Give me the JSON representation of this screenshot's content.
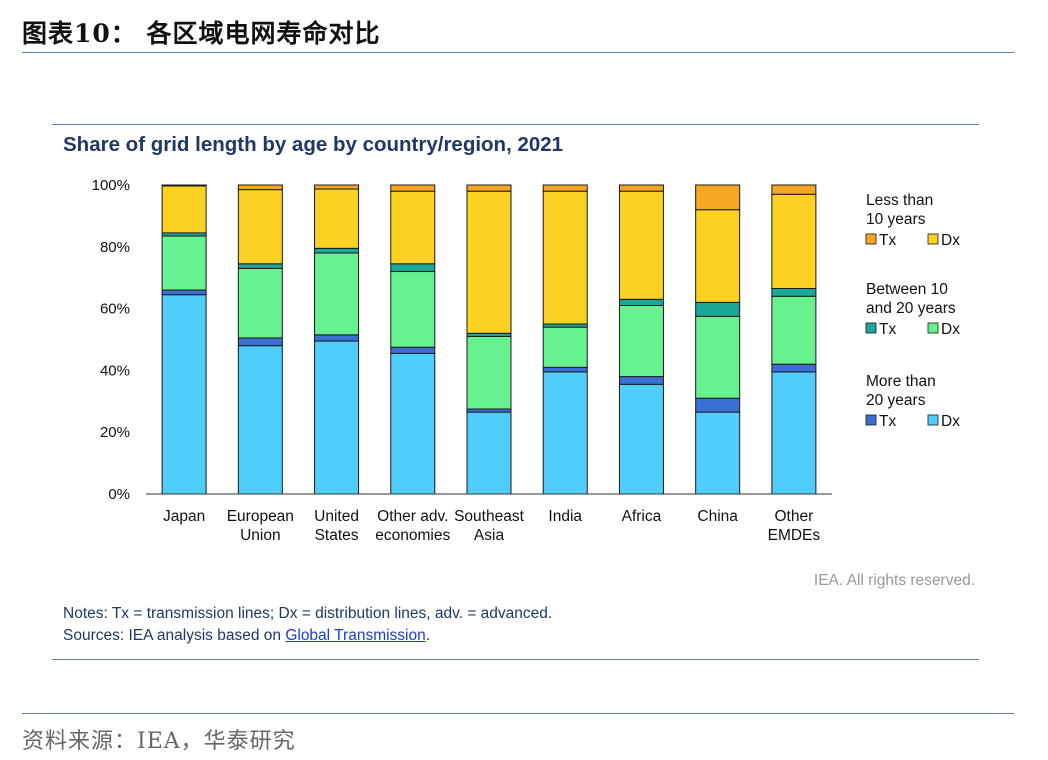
{
  "figure": {
    "header": "图表10： 各区域电网寿命对比",
    "source": "资料来源：IEA，华泰研究"
  },
  "chart_data": {
    "type": "bar",
    "stacked": true,
    "title": "Share of grid length by age by country/region, 2021",
    "categories": [
      [
        "Japan"
      ],
      [
        "European",
        "Union"
      ],
      [
        "United",
        "States"
      ],
      [
        "Other adv.",
        "economies"
      ],
      [
        "Southeast",
        "Asia"
      ],
      [
        "India"
      ],
      [
        "Africa"
      ],
      [
        "China"
      ],
      [
        "Other",
        "EMDEs"
      ]
    ],
    "y_ticks": [
      "0%",
      "20%",
      "40%",
      "60%",
      "80%",
      "100%"
    ],
    "ylim": [
      0,
      100
    ],
    "series": [
      {
        "name": "Dx",
        "group": "More than 20 years",
        "color": "#4fcdfb",
        "values": [
          64.5,
          48,
          49.5,
          45.5,
          26.5,
          39.5,
          35.5,
          26.5,
          39.5
        ]
      },
      {
        "name": "Tx",
        "group": "More than 20 years",
        "color": "#3b6fd6",
        "values": [
          1.5,
          2.5,
          2,
          2,
          1,
          1.5,
          2.5,
          4.5,
          2.5
        ]
      },
      {
        "name": "Dx",
        "group": "Between 10 and 20 years",
        "color": "#66f28e",
        "values": [
          17.5,
          22.5,
          26.5,
          24.5,
          23.5,
          13,
          23,
          26.5,
          22
        ]
      },
      {
        "name": "Tx",
        "group": "Between 10 and 20 years",
        "color": "#1aa898",
        "values": [
          1,
          1.5,
          1.5,
          2.5,
          1,
          1,
          2,
          4.5,
          2.5
        ]
      },
      {
        "name": "Dx",
        "group": "Less than 10 years",
        "color": "#fcd121",
        "values": [
          15.2,
          24,
          19.2,
          23.5,
          46,
          43,
          35,
          30,
          30.5
        ]
      },
      {
        "name": "Tx",
        "group": "Less than 10 years",
        "color": "#f5a623",
        "values": [
          0.3,
          1.5,
          1.3,
          2,
          2,
          2,
          2,
          8,
          3
        ]
      }
    ],
    "legend": {
      "position": "right",
      "groups": [
        {
          "title": [
            "Less than",
            "10 years"
          ],
          "items": [
            {
              "label": "Tx",
              "color": "#f5a623"
            },
            {
              "label": "Dx",
              "color": "#fcd121"
            }
          ]
        },
        {
          "title": [
            "Between 10",
            "and 20 years"
          ],
          "items": [
            {
              "label": "Tx",
              "color": "#1aa898"
            },
            {
              "label": "Dx",
              "color": "#66f28e"
            }
          ]
        },
        {
          "title": [
            "More than",
            "20 years"
          ],
          "items": [
            {
              "label": "Tx",
              "color": "#3b6fd6"
            },
            {
              "label": "Dx",
              "color": "#4fcdfb"
            }
          ]
        }
      ]
    },
    "grid": false,
    "notes": "Notes: Tx = transmission lines; Dx = distribution lines, adv. = advanced.",
    "sources_prefix": "Sources: IEA analysis based on ",
    "sources_link": "Global Transmission",
    "sources_suffix": ".",
    "copyright": "IEA. All rights reserved."
  }
}
